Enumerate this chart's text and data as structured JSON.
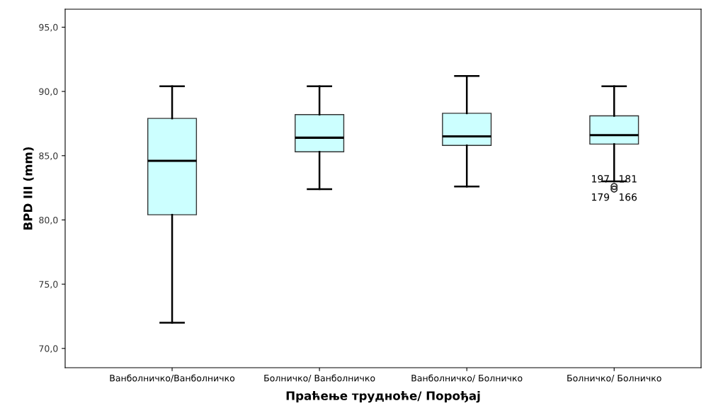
{
  "chart_data": {
    "type": "box",
    "xlabel": "Праћење трудноће/ Порођај",
    "ylabel": "BPD III (mm)",
    "categories": [
      "Ванболничко/Ванболничко",
      "Болничко/ Ванболничко",
      "Ванболничко/ Болничко",
      "Болничко/ Болничко"
    ],
    "color": "#ccffff",
    "boxes": [
      {
        "low": 72.0,
        "q1": 80.4,
        "median": 84.6,
        "q3": 87.9,
        "high": 90.4
      },
      {
        "low": 82.4,
        "q1": 85.3,
        "median": 86.4,
        "q3": 88.2,
        "high": 90.4
      },
      {
        "low": 82.6,
        "q1": 85.8,
        "median": 86.5,
        "q3": 88.3,
        "high": 91.2
      },
      {
        "low": 83.0,
        "q1": 85.9,
        "median": 86.6,
        "q3": 88.1,
        "high": 90.4,
        "outliers": [
          82.6,
          82.6,
          82.4,
          82.4
        ]
      }
    ],
    "ylim": [
      68.5,
      96.4
    ],
    "yticks": [
      {
        "value": 70,
        "label": "70,0"
      },
      {
        "value": 75,
        "label": "75,0"
      },
      {
        "value": 80,
        "label": "80,0"
      },
      {
        "value": 85,
        "label": "85,0"
      },
      {
        "value": 90,
        "label": "90,0"
      },
      {
        "value": 95,
        "label": "95,0"
      }
    ],
    "grid": false,
    "legend": false,
    "annotations": [
      "197",
      "181",
      "179",
      "166"
    ]
  }
}
